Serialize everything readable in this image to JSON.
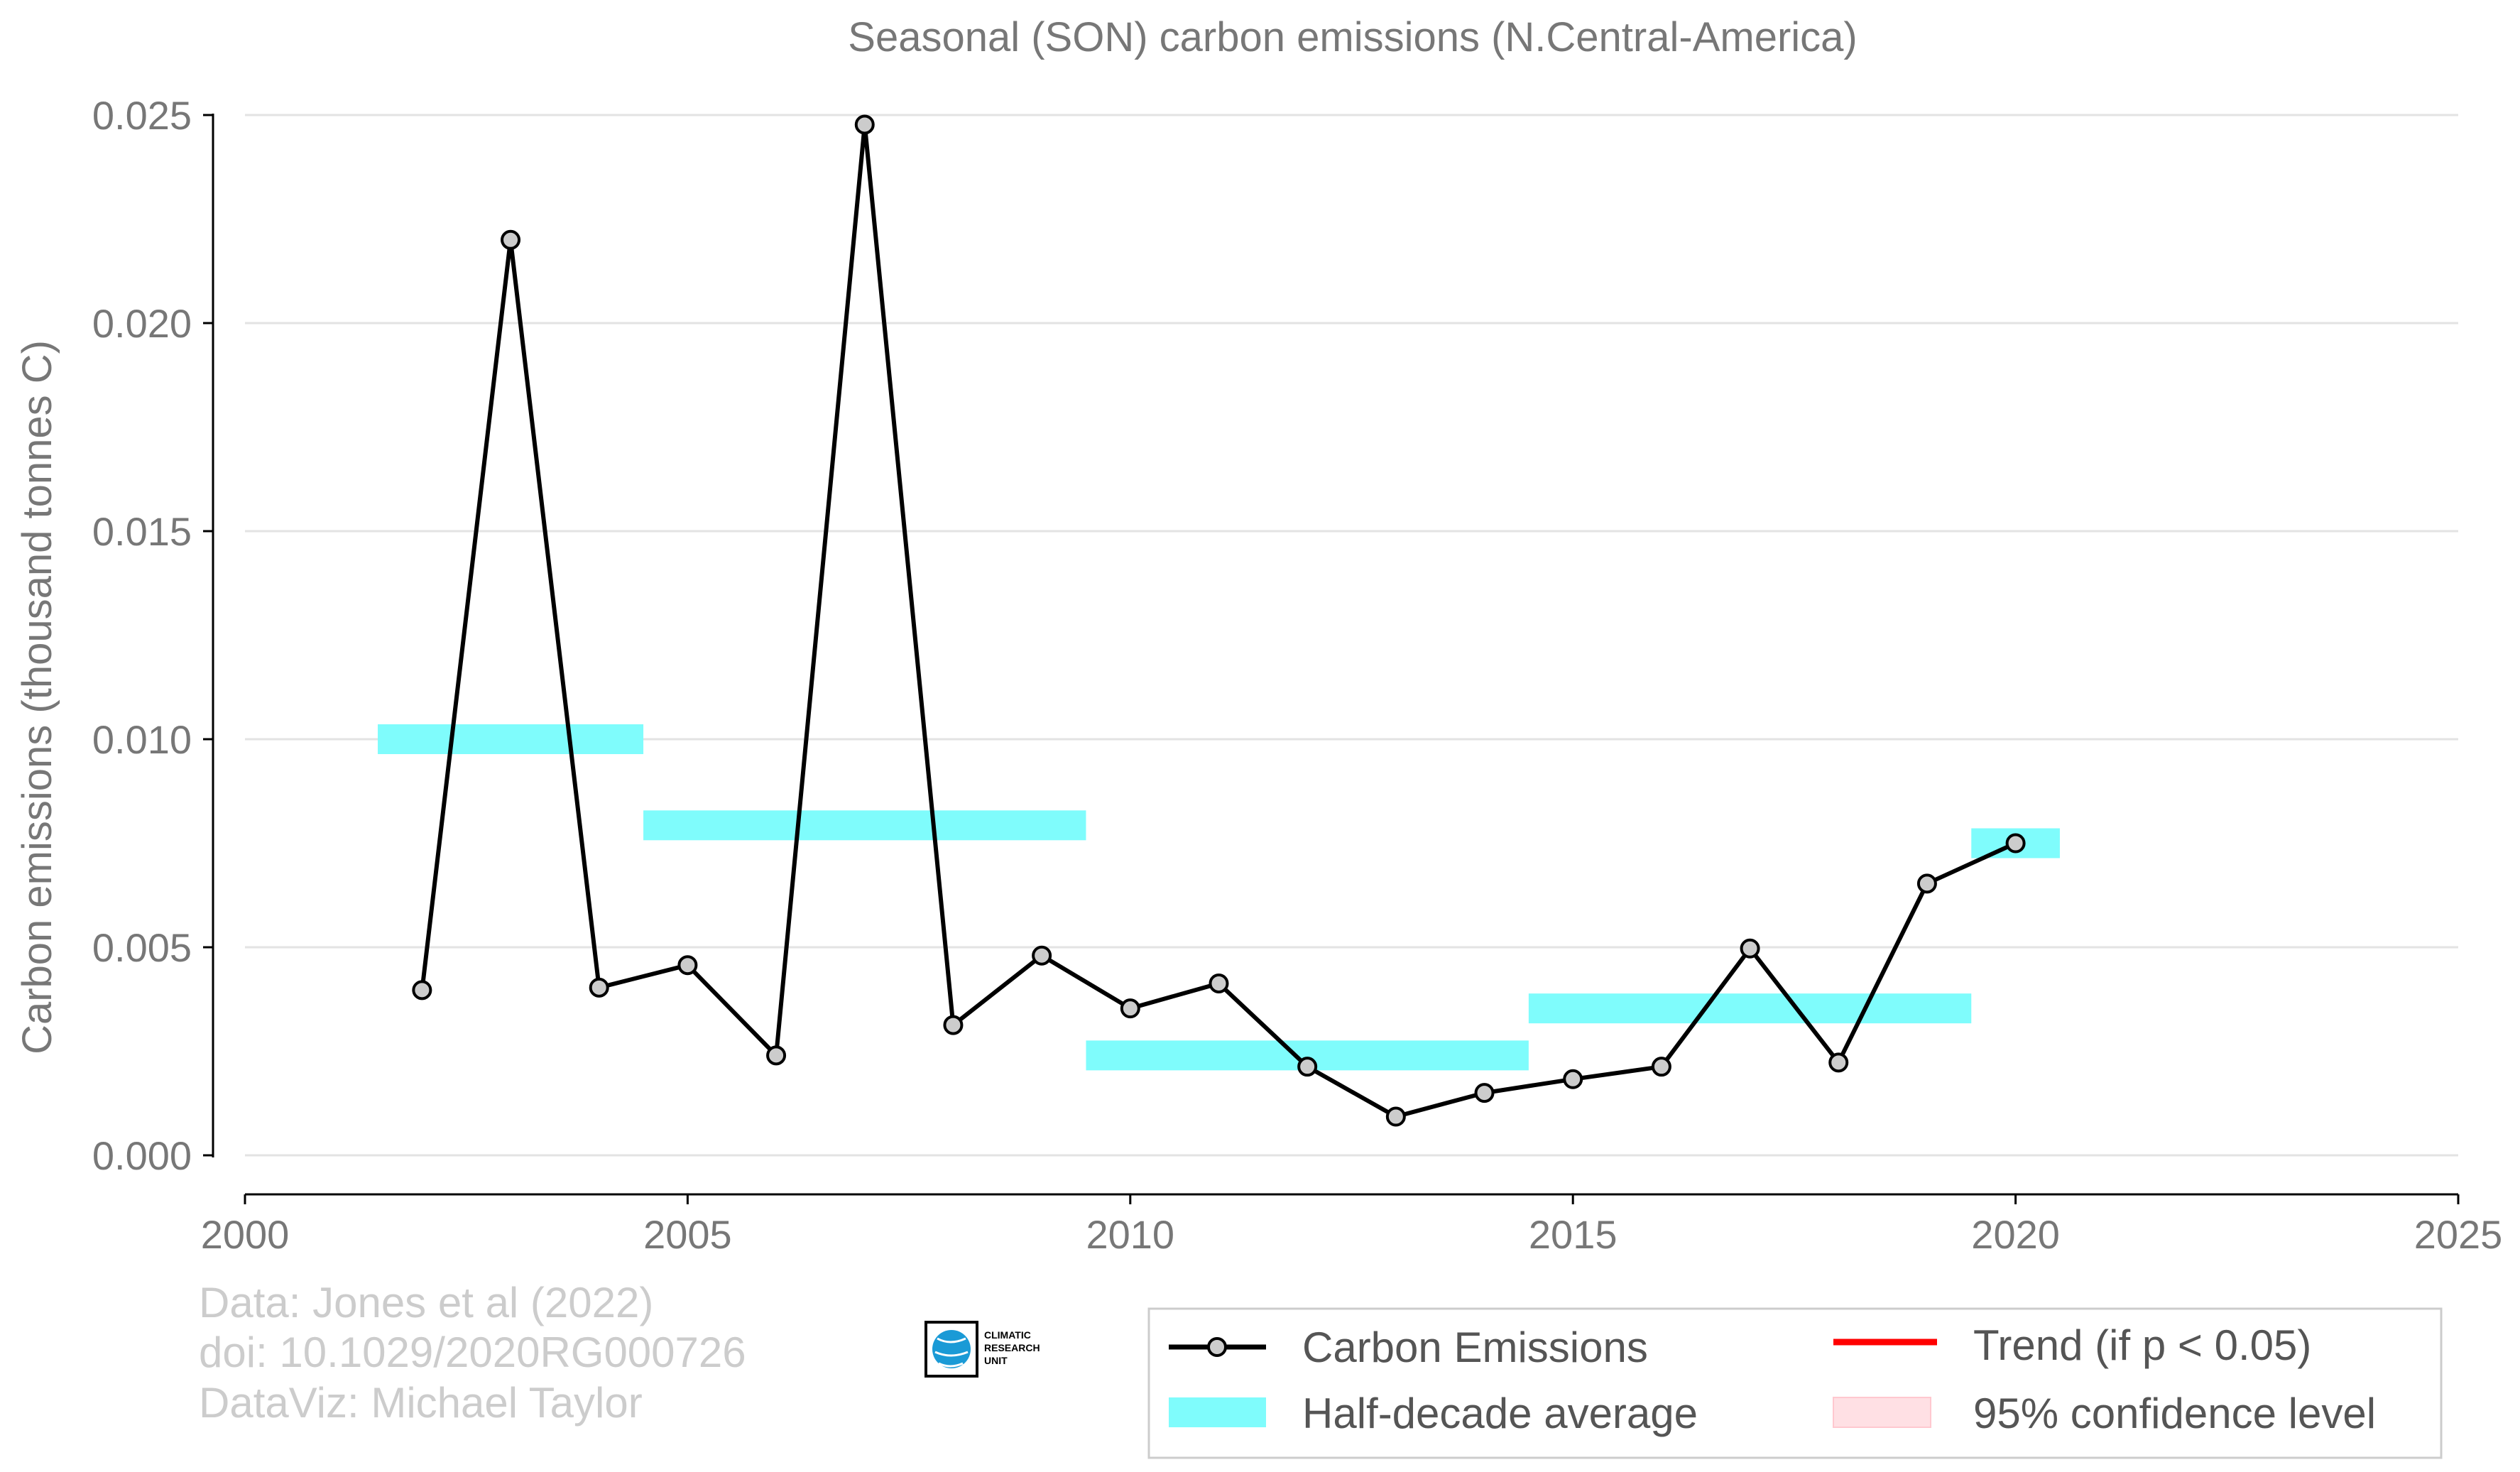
{
  "chart_data": {
    "type": "line",
    "title": "Seasonal (SON) carbon emissions (N.Central-America)",
    "xlabel": "",
    "ylabel": "Carbon emissions (thousand tonnes C)",
    "xlim": [
      2000,
      2025
    ],
    "ylim": [
      0,
      0.025
    ],
    "x_ticks": [
      2000,
      2005,
      2010,
      2015,
      2020,
      2025
    ],
    "x_tick_labels": [
      "2000",
      "2005",
      "2010",
      "2015",
      "2020",
      "2025"
    ],
    "y_ticks": [
      0,
      0.005,
      0.01,
      0.015,
      0.02,
      0.025
    ],
    "y_tick_labels": [
      "0.000",
      "0.005",
      "0.010",
      "0.015",
      "0.020",
      "0.025"
    ],
    "grid": "horizontal",
    "series": [
      {
        "name": "Carbon Emissions",
        "color": "#000000",
        "marker_fill": "#cccccc",
        "x": [
          2002,
          2003,
          2004,
          2005,
          2006,
          2007,
          2008,
          2009,
          2010,
          2011,
          2012,
          2013,
          2014,
          2015,
          2016,
          2017,
          2018,
          2019,
          2020
        ],
        "y": [
          0.00397,
          0.022,
          0.00403,
          0.00457,
          0.0024,
          0.02477,
          0.00313,
          0.0048,
          0.00353,
          0.00413,
          0.00213,
          0.00093,
          0.0015,
          0.00183,
          0.00213,
          0.00497,
          0.00223,
          0.00653,
          0.0075
        ]
      }
    ],
    "half_decade_average": {
      "name": "Half-decade average",
      "color": "#7ffcfc",
      "segments": [
        {
          "x0": 2001.5,
          "x1": 2004.5,
          "y": 0.01
        },
        {
          "x0": 2004.5,
          "x1": 2009.5,
          "y": 0.00793
        },
        {
          "x0": 2009.5,
          "x1": 2014.5,
          "y": 0.0024
        },
        {
          "x0": 2014.5,
          "x1": 2019.5,
          "y": 0.00353
        },
        {
          "x0": 2019.5,
          "x1": 2020.5,
          "y": 0.0075
        }
      ]
    },
    "legend": {
      "placement": "bottom-right",
      "entries": [
        {
          "label": "Carbon Emissions",
          "kind": "line-marker",
          "color": "#000000"
        },
        {
          "label": "Trend (if p < 0.05)",
          "kind": "line",
          "color": "#ff0000"
        },
        {
          "label": "Half-decade average",
          "kind": "band",
          "color": "#7ffcfc"
        },
        {
          "label": "95% confidence level",
          "kind": "band",
          "color": "#ffe0e4"
        }
      ]
    }
  },
  "credits": {
    "line1": "Data: Jones et al (2022)",
    "line2": "doi: 10.1029/2020RG000726",
    "line3": "DataViz: Michael Taylor"
  },
  "logo": {
    "line1": "CLIMATIC",
    "line2": "RESEARCH",
    "line3": "UNIT"
  }
}
